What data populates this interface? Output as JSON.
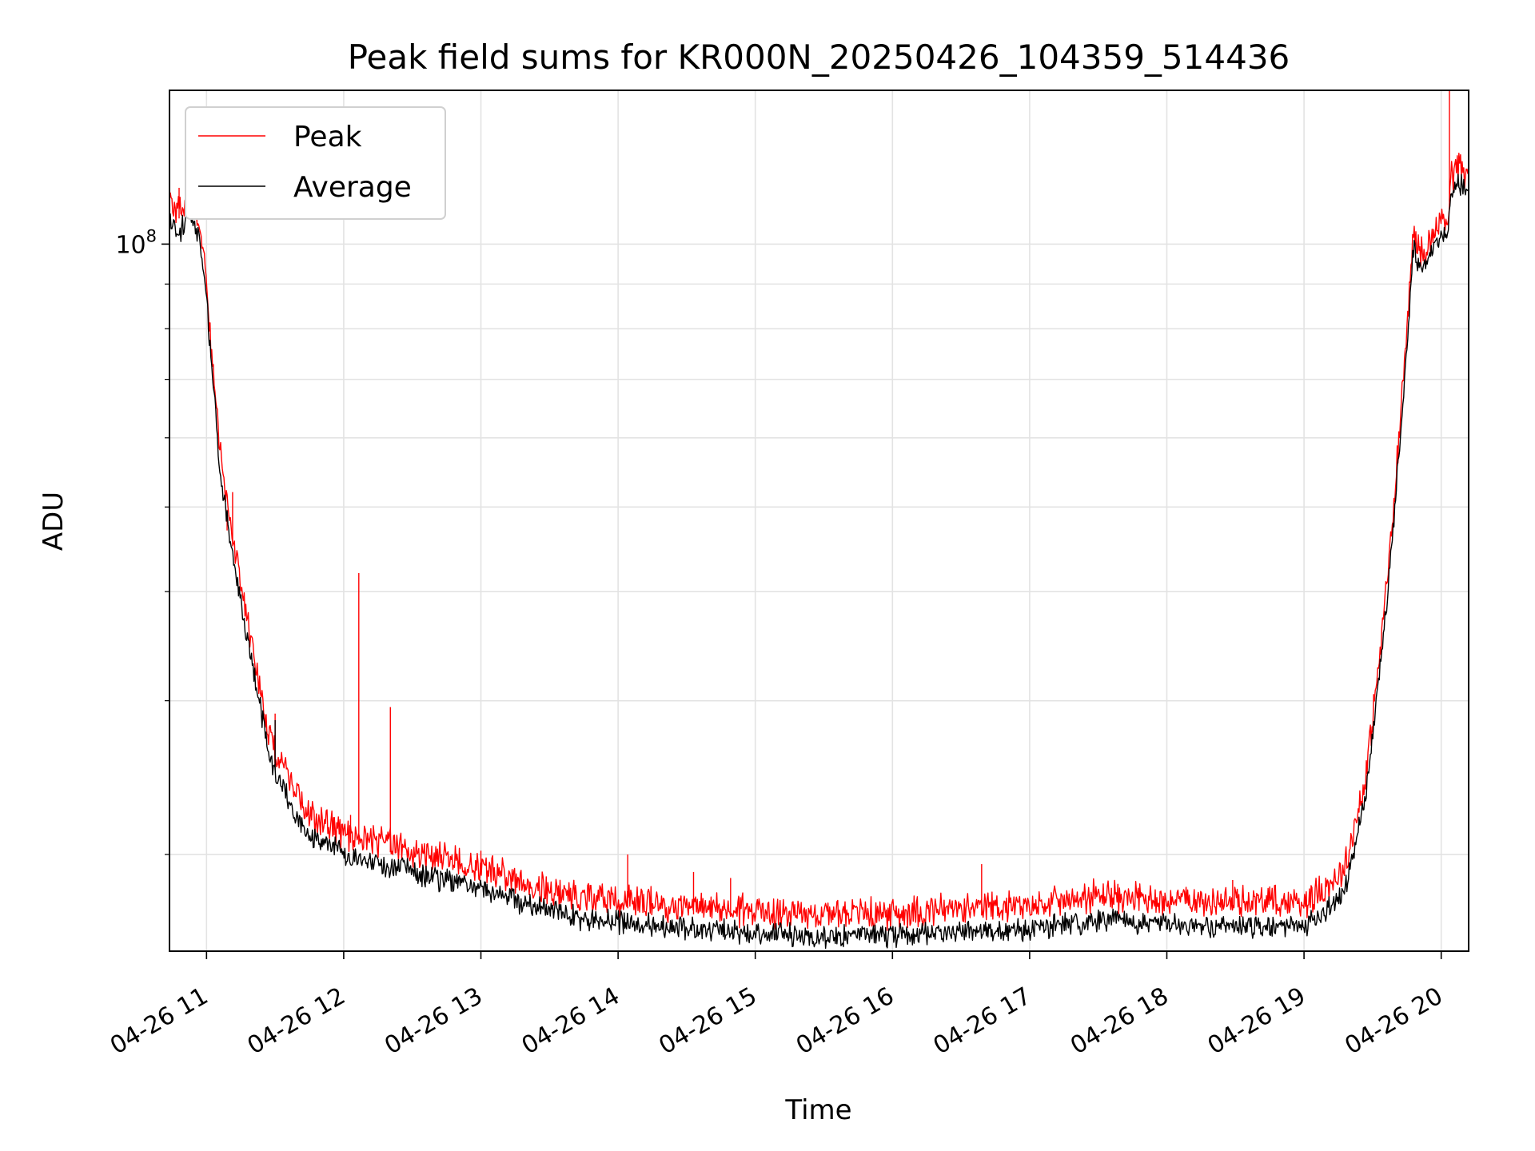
{
  "chart_data": {
    "type": "line",
    "title": "Peak field sums for KR000N_20250426_104359_514436",
    "xlabel": "Time",
    "ylabel": "ADU",
    "yscale": "log",
    "grid": true,
    "legend_position": "top-left",
    "xlim": [
      10.73,
      20.2
    ],
    "ylim": [
      15500000,
      150000000
    ],
    "x_ticks": [
      {
        "value": 11,
        "label": "04-26 11"
      },
      {
        "value": 12,
        "label": "04-26 12"
      },
      {
        "value": 13,
        "label": "04-26 13"
      },
      {
        "value": 14,
        "label": "04-26 14"
      },
      {
        "value": 15,
        "label": "04-26 15"
      },
      {
        "value": 16,
        "label": "04-26 16"
      },
      {
        "value": 17,
        "label": "04-26 17"
      },
      {
        "value": 18,
        "label": "04-26 18"
      },
      {
        "value": 19,
        "label": "04-26 19"
      },
      {
        "value": 20,
        "label": "04-26 20"
      }
    ],
    "y_major_ticks": [
      {
        "value": 100000000,
        "label_base": "10",
        "label_exp": "8"
      }
    ],
    "y_minor_ticks": [
      20000000,
      30000000,
      40000000,
      50000000,
      60000000,
      70000000,
      80000000,
      90000000
    ],
    "x_unit": "hour of day (2025-04-26)",
    "series": [
      {
        "name": "Peak",
        "color": "#ff0000",
        "baseline": [
          [
            10.73,
            110000000
          ],
          [
            10.8,
            107000000
          ],
          [
            10.87,
            112000000
          ],
          [
            10.95,
            104000000
          ],
          [
            11.0,
            88000000
          ],
          [
            11.05,
            70000000
          ],
          [
            11.1,
            56000000
          ],
          [
            11.2,
            44000000
          ],
          [
            11.3,
            36000000
          ],
          [
            11.4,
            30000000
          ],
          [
            11.45,
            27000000
          ],
          [
            11.5,
            25500000
          ],
          [
            11.58,
            24300000
          ],
          [
            11.65,
            22800000
          ],
          [
            11.75,
            21800000
          ],
          [
            11.9,
            21200000
          ],
          [
            12.0,
            20700000
          ],
          [
            12.2,
            20400000
          ],
          [
            12.4,
            20000000
          ],
          [
            12.6,
            19600000
          ],
          [
            12.8,
            19300000
          ],
          [
            13.0,
            19000000
          ],
          [
            13.3,
            18300000
          ],
          [
            13.6,
            17700000
          ],
          [
            14.0,
            17400000
          ],
          [
            14.5,
            17100000
          ],
          [
            15.0,
            16900000
          ],
          [
            15.5,
            16800000
          ],
          [
            16.0,
            16800000
          ],
          [
            16.5,
            17000000
          ],
          [
            17.0,
            17100000
          ],
          [
            17.5,
            17600000
          ],
          [
            18.0,
            17400000
          ],
          [
            18.5,
            17300000
          ],
          [
            19.0,
            17300000
          ],
          [
            19.15,
            17900000
          ],
          [
            19.3,
            19000000
          ],
          [
            19.45,
            24000000
          ],
          [
            19.55,
            33000000
          ],
          [
            19.65,
            48000000
          ],
          [
            19.73,
            70000000
          ],
          [
            19.8,
            103000000
          ],
          [
            19.82,
            97000000
          ],
          [
            19.87,
            96000000
          ],
          [
            19.92,
            99000000
          ],
          [
            19.97,
            103000000
          ],
          [
            20.05,
            106000000
          ],
          [
            20.07,
            118000000
          ],
          [
            20.15,
            120000000
          ],
          [
            20.2,
            117000000
          ]
        ],
        "spikes": [
          [
            10.8,
            116000000
          ],
          [
            11.19,
            52000000
          ],
          [
            11.15,
            47000000
          ],
          [
            11.5,
            29000000
          ],
          [
            11.93,
            22000000
          ],
          [
            12.05,
            22200000
          ],
          [
            12.11,
            42000000
          ],
          [
            12.34,
            29500000
          ],
          [
            13.0,
            20200000
          ],
          [
            14.07,
            20000000
          ],
          [
            14.55,
            19100000
          ],
          [
            14.82,
            18800000
          ],
          [
            16.65,
            19500000
          ],
          [
            18.48,
            18700000
          ],
          [
            20.06,
            150000000
          ]
        ]
      },
      {
        "name": "Average",
        "color": "#000000",
        "baseline": [
          [
            10.73,
            108000000
          ],
          [
            10.8,
            104000000
          ],
          [
            10.87,
            110000000
          ],
          [
            10.95,
            102000000
          ],
          [
            11.0,
            87000000
          ],
          [
            11.05,
            69000000
          ],
          [
            11.1,
            55000000
          ],
          [
            11.2,
            43500000
          ],
          [
            11.3,
            35500000
          ],
          [
            11.4,
            29500000
          ],
          [
            11.45,
            26500000
          ],
          [
            11.5,
            25000000
          ],
          [
            11.58,
            23800000
          ],
          [
            11.65,
            22300000
          ],
          [
            11.75,
            21300000
          ],
          [
            11.9,
            20700000
          ],
          [
            12.0,
            20200000
          ],
          [
            12.2,
            19900000
          ],
          [
            12.4,
            19500000
          ],
          [
            12.6,
            19100000
          ],
          [
            12.8,
            18800000
          ],
          [
            13.0,
            18500000
          ],
          [
            13.3,
            17800000
          ],
          [
            13.6,
            17200000
          ],
          [
            14.0,
            16900000
          ],
          [
            14.5,
            16600000
          ],
          [
            15.0,
            16400000
          ],
          [
            15.5,
            16300000
          ],
          [
            16.0,
            16300000
          ],
          [
            16.5,
            16500000
          ],
          [
            17.0,
            16600000
          ],
          [
            17.5,
            17000000
          ],
          [
            18.0,
            16800000
          ],
          [
            18.5,
            16700000
          ],
          [
            19.0,
            16700000
          ],
          [
            19.15,
            17300000
          ],
          [
            19.3,
            18500000
          ],
          [
            19.45,
            23500000
          ],
          [
            19.55,
            32500000
          ],
          [
            19.65,
            47500000
          ],
          [
            19.73,
            69000000
          ],
          [
            19.8,
            102000000
          ],
          [
            19.82,
            96000000
          ],
          [
            19.87,
            95000000
          ],
          [
            19.92,
            98000000
          ],
          [
            19.97,
            102000000
          ],
          [
            20.05,
            105000000
          ],
          [
            20.07,
            117000000
          ],
          [
            20.15,
            119000000
          ],
          [
            20.2,
            116000000
          ]
        ],
        "spikes": [
          [
            11.5,
            28500000
          ]
        ]
      }
    ]
  }
}
